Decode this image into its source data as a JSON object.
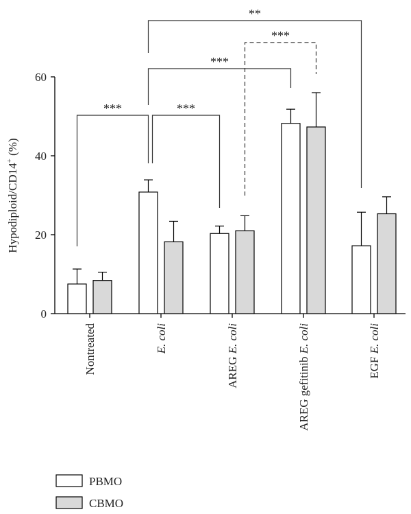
{
  "chart_data": {
    "type": "bar",
    "ylabel_main": "Hypodiploid/CD14",
    "ylabel_sup": "+",
    "ylabel_unit": " (%)",
    "ylim": [
      0,
      60
    ],
    "yticks": [
      "0",
      "20",
      "40",
      "60"
    ],
    "categories": [
      {
        "pre": "Nontreated",
        "ital": ""
      },
      {
        "pre": "",
        "ital": "E. coli"
      },
      {
        "pre": "AREG ",
        "ital": "E. coli"
      },
      {
        "pre": "AREG gefitinib ",
        "ital": "E. coli"
      },
      {
        "pre": "EGF ",
        "ital": "E. coli"
      }
    ],
    "series": [
      {
        "name": "PBMO",
        "color": "#ffffff",
        "values": [
          7.5,
          30.8,
          20.3,
          48.2,
          17.2
        ],
        "errors": [
          3.8,
          3.1,
          1.9,
          3.6,
          8.5
        ]
      },
      {
        "name": "CBMO",
        "color": "#d9d9d9",
        "values": [
          8.4,
          18.2,
          21.0,
          47.3,
          25.3
        ],
        "errors": [
          2.1,
          5.2,
          3.8,
          8.7,
          4.3
        ]
      }
    ],
    "significance": [
      {
        "label": "***",
        "style": "solid",
        "from": [
          0,
          0
        ],
        "to": [
          1,
          0
        ]
      },
      {
        "label": "***",
        "style": "solid",
        "from": [
          1,
          0
        ],
        "to": [
          2,
          0
        ]
      },
      {
        "label": "***",
        "style": "solid",
        "from": [
          1,
          0
        ],
        "to": [
          3,
          0
        ]
      },
      {
        "label": "***",
        "style": "dashed",
        "from": [
          2,
          1
        ],
        "to": [
          3,
          1
        ]
      },
      {
        "label": "**",
        "style": "solid",
        "from": [
          1,
          0
        ],
        "to": [
          4,
          0
        ]
      }
    ],
    "legend_position": "bottom-left"
  }
}
